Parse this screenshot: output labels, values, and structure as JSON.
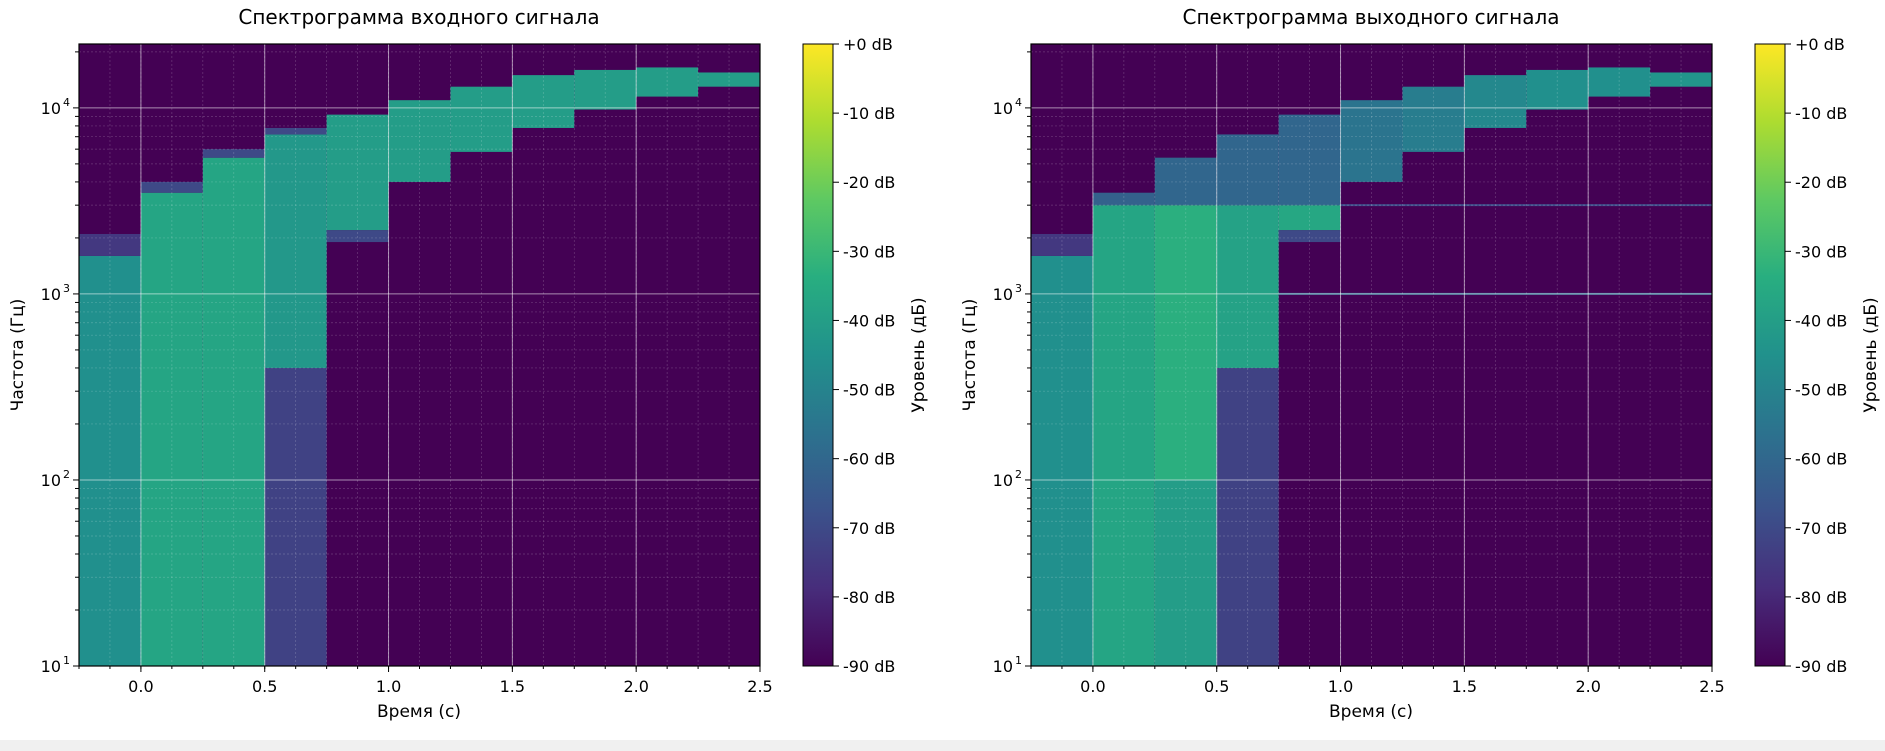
{
  "chart_data": [
    {
      "type": "heatmap",
      "title": "Спектрограмма входного сигнала",
      "xlabel": "Время (с)",
      "ylabel": "Частота (Гц)",
      "x_scale": "linear",
      "y_scale": "log",
      "xlim": [
        -0.25,
        2.5
      ],
      "ylim": [
        10,
        22050
      ],
      "x_ticks": [
        "0.0",
        "0.5",
        "1.0",
        "1.5",
        "2.0",
        "2.5"
      ],
      "x_tick_values": [
        0,
        0.5,
        1.0,
        1.5,
        2.0,
        2.5
      ],
      "y_ticks": [
        {
          "base": "10",
          "exp": "1",
          "value": 10
        },
        {
          "base": "10",
          "exp": "2",
          "value": 100
        },
        {
          "base": "10",
          "exp": "3",
          "value": 1000
        },
        {
          "base": "10",
          "exp": "4",
          "value": 10000
        }
      ],
      "grid": true,
      "background_level_db": -90,
      "segments": [
        {
          "t": [
            -0.25,
            0.0
          ],
          "bands": [
            {
              "f": [
                10,
                1600
              ],
              "db": -45
            },
            {
              "f": [
                1600,
                2100
              ],
              "db": -75
            }
          ]
        },
        {
          "t": [
            0.0,
            0.25
          ],
          "bands": [
            {
              "f": [
                10,
                3500
              ],
              "db": -37
            },
            {
              "f": [
                3500,
                4000
              ],
              "db": -70
            }
          ]
        },
        {
          "t": [
            0.25,
            0.5
          ],
          "bands": [
            {
              "f": [
                10,
                5400
              ],
              "db": -37
            },
            {
              "f": [
                5400,
                6000
              ],
              "db": -70
            }
          ]
        },
        {
          "t": [
            0.5,
            0.75
          ],
          "bands": [
            {
              "f": [
                10,
                400
              ],
              "db": -72
            },
            {
              "f": [
                400,
                7200
              ],
              "db": -42
            },
            {
              "f": [
                7200,
                7800
              ],
              "db": -70
            }
          ]
        },
        {
          "t": [
            0.75,
            1.0
          ],
          "bands": [
            {
              "f": [
                2200,
                9200
              ],
              "db": -40
            },
            {
              "f": [
                1900,
                2200
              ],
              "db": -70
            }
          ]
        },
        {
          "t": [
            1.0,
            1.25
          ],
          "bands": [
            {
              "f": [
                4000,
                11000
              ],
              "db": -40
            }
          ]
        },
        {
          "t": [
            1.25,
            1.5
          ],
          "bands": [
            {
              "f": [
                5800,
                13000
              ],
              "db": -40
            }
          ]
        },
        {
          "t": [
            1.5,
            1.75
          ],
          "bands": [
            {
              "f": [
                7800,
                15000
              ],
              "db": -40
            }
          ]
        },
        {
          "t": [
            1.75,
            2.0
          ],
          "bands": [
            {
              "f": [
                9800,
                16000
              ],
              "db": -40
            }
          ]
        },
        {
          "t": [
            2.0,
            2.25
          ],
          "bands": [
            {
              "f": [
                11500,
                16500
              ],
              "db": -40
            }
          ]
        },
        {
          "t": [
            2.25,
            2.5
          ],
          "bands": [
            {
              "f": [
                13000,
                15500
              ],
              "db": -40
            }
          ]
        }
      ]
    },
    {
      "type": "heatmap",
      "title": "Спектрограмма выходного сигнала",
      "xlabel": "Время (с)",
      "ylabel": "Частота (Гц)",
      "x_scale": "linear",
      "y_scale": "log",
      "xlim": [
        -0.25,
        2.5
      ],
      "ylim": [
        10,
        22050
      ],
      "x_ticks": [
        "0.0",
        "0.5",
        "1.0",
        "1.5",
        "2.0",
        "2.5"
      ],
      "x_tick_values": [
        0,
        0.5,
        1.0,
        1.5,
        2.0,
        2.5
      ],
      "y_ticks": [
        {
          "base": "10",
          "exp": "1",
          "value": 10
        },
        {
          "base": "10",
          "exp": "2",
          "value": 100
        },
        {
          "base": "10",
          "exp": "3",
          "value": 1000
        },
        {
          "base": "10",
          "exp": "4",
          "value": 10000
        }
      ],
      "grid": true,
      "background_level_db": -90,
      "segments": [
        {
          "t": [
            -0.25,
            0.0
          ],
          "bands": [
            {
              "f": [
                10,
                1600
              ],
              "db": -45
            },
            {
              "f": [
                1600,
                2100
              ],
              "db": -75
            }
          ]
        },
        {
          "t": [
            0.0,
            0.25
          ],
          "bands": [
            {
              "f": [
                10,
                3000
              ],
              "db": -37
            },
            {
              "f": [
                3000,
                3500
              ],
              "db": -62
            }
          ]
        },
        {
          "t": [
            0.25,
            0.5
          ],
          "bands": [
            {
              "f": [
                10,
                100
              ],
              "db": -40
            },
            {
              "f": [
                100,
                3000
              ],
              "db": -33
            },
            {
              "f": [
                3000,
                5400
              ],
              "db": -60
            }
          ]
        },
        {
          "t": [
            0.5,
            0.75
          ],
          "bands": [
            {
              "f": [
                10,
                400
              ],
              "db": -72
            },
            {
              "f": [
                400,
                3000
              ],
              "db": -38
            },
            {
              "f": [
                3000,
                7200
              ],
              "db": -60
            }
          ]
        },
        {
          "t": [
            0.75,
            1.0
          ],
          "bands": [
            {
              "f": [
                2200,
                3000
              ],
              "db": -36
            },
            {
              "f": [
                3000,
                9200
              ],
              "db": -60
            },
            {
              "f": [
                1900,
                2200
              ],
              "db": -70
            }
          ]
        },
        {
          "t": [
            1.0,
            1.25
          ],
          "bands": [
            {
              "f": [
                4000,
                11000
              ],
              "db": -55
            }
          ]
        },
        {
          "t": [
            1.25,
            1.5
          ],
          "bands": [
            {
              "f": [
                5800,
                13000
              ],
              "db": -52
            }
          ]
        },
        {
          "t": [
            1.5,
            1.75
          ],
          "bands": [
            {
              "f": [
                7800,
                15000
              ],
              "db": -48
            }
          ]
        },
        {
          "t": [
            1.75,
            2.0
          ],
          "bands": [
            {
              "f": [
                9800,
                16000
              ],
              "db": -45
            }
          ]
        },
        {
          "t": [
            2.0,
            2.25
          ],
          "bands": [
            {
              "f": [
                11500,
                16500
              ],
              "db": -45
            }
          ]
        },
        {
          "t": [
            2.25,
            2.5
          ],
          "bands": [
            {
              "f": [
                13000,
                15500
              ],
              "db": -43
            }
          ]
        }
      ],
      "lines": [
        {
          "f": 1000,
          "t": [
            0.75,
            2.5
          ],
          "db": -60
        },
        {
          "f": 3000,
          "t": [
            1.0,
            2.5
          ],
          "db": -70
        }
      ]
    }
  ],
  "colorbar": {
    "label": "Уровень (дБ)",
    "min_db": -90,
    "max_db": 0,
    "colormap": "viridis",
    "ticks": [
      "+0 dB",
      "-10 dB",
      "-20 dB",
      "-30 dB",
      "-40 dB",
      "-50 dB",
      "-60 dB",
      "-70 dB",
      "-80 dB",
      "-90 dB"
    ],
    "tick_values": [
      0,
      -10,
      -20,
      -30,
      -40,
      -50,
      -60,
      -70,
      -80,
      -90
    ]
  }
}
